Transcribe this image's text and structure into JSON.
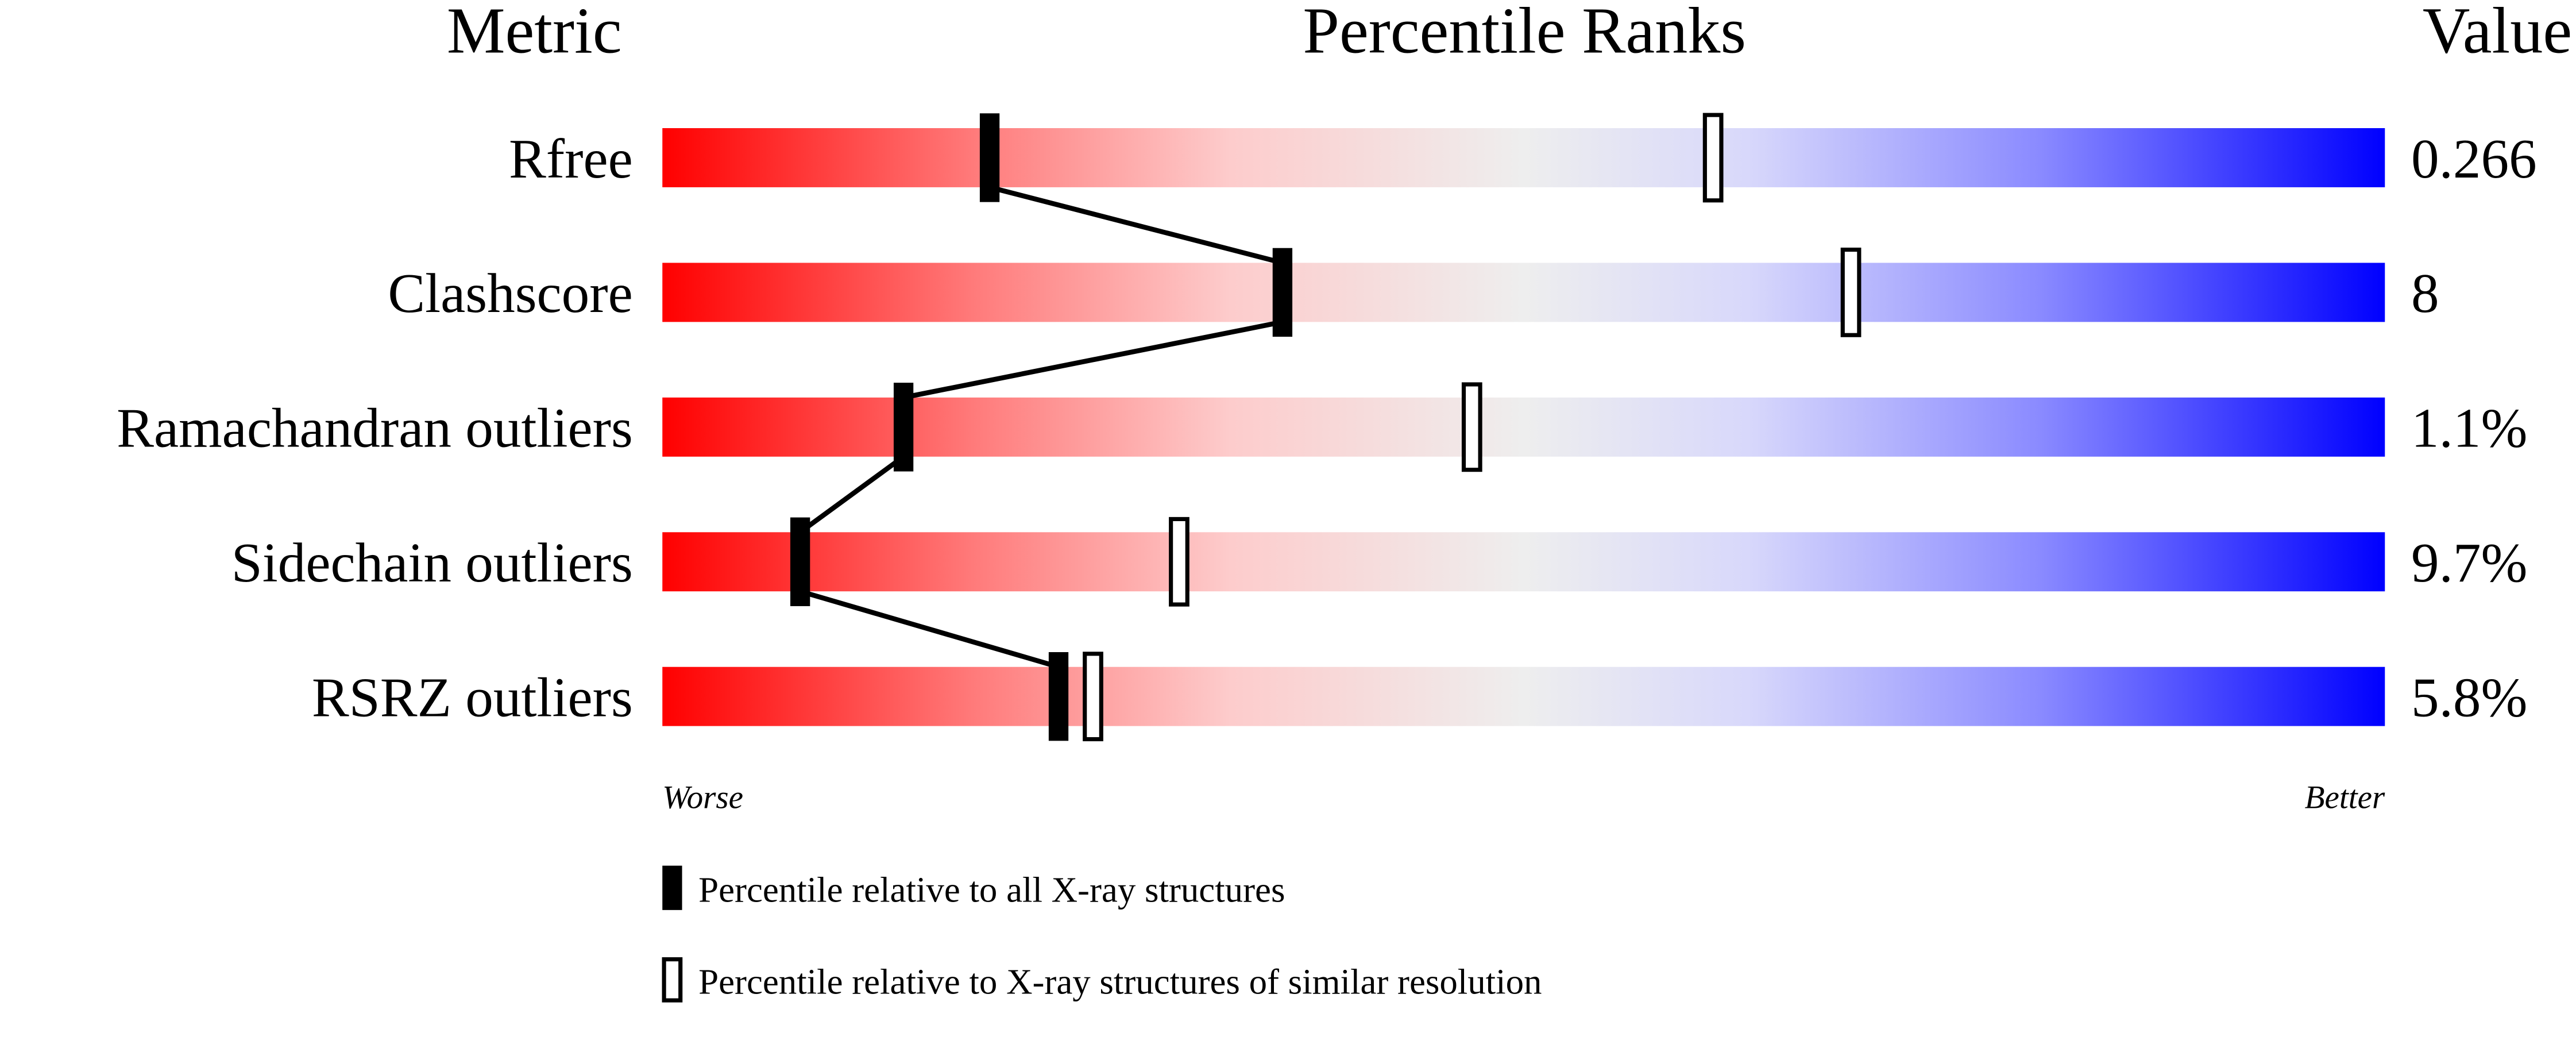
{
  "chart_data": {
    "type": "percentile-slider",
    "headers": {
      "metric": "Metric",
      "ranks": "Percentile Ranks",
      "value": "Value"
    },
    "axis": {
      "left_label": "Worse",
      "right_label": "Better",
      "range": [
        0,
        100
      ]
    },
    "gradient_colors": [
      "#ff0000",
      "#eeeeee",
      "#0000ff"
    ],
    "metrics": [
      {
        "name": "Rfree",
        "value": "0.266",
        "percentile_all": 19,
        "percentile_similar": 61
      },
      {
        "name": "Clashscore",
        "value": "8",
        "percentile_all": 36,
        "percentile_similar": 69
      },
      {
        "name": "Ramachandran outliers",
        "value": "1.1%",
        "percentile_all": 14,
        "percentile_similar": 47
      },
      {
        "name": "Sidechain outliers",
        "value": "9.7%",
        "percentile_all": 8,
        "percentile_similar": 30
      },
      {
        "name": "RSRZ outliers",
        "value": "5.8%",
        "percentile_all": 23,
        "percentile_similar": 25
      }
    ],
    "legend": [
      {
        "marker": "filled",
        "label": "Percentile relative to all X-ray structures"
      },
      {
        "marker": "hollow",
        "label": "Percentile relative to X-ray structures of similar resolution"
      }
    ]
  }
}
